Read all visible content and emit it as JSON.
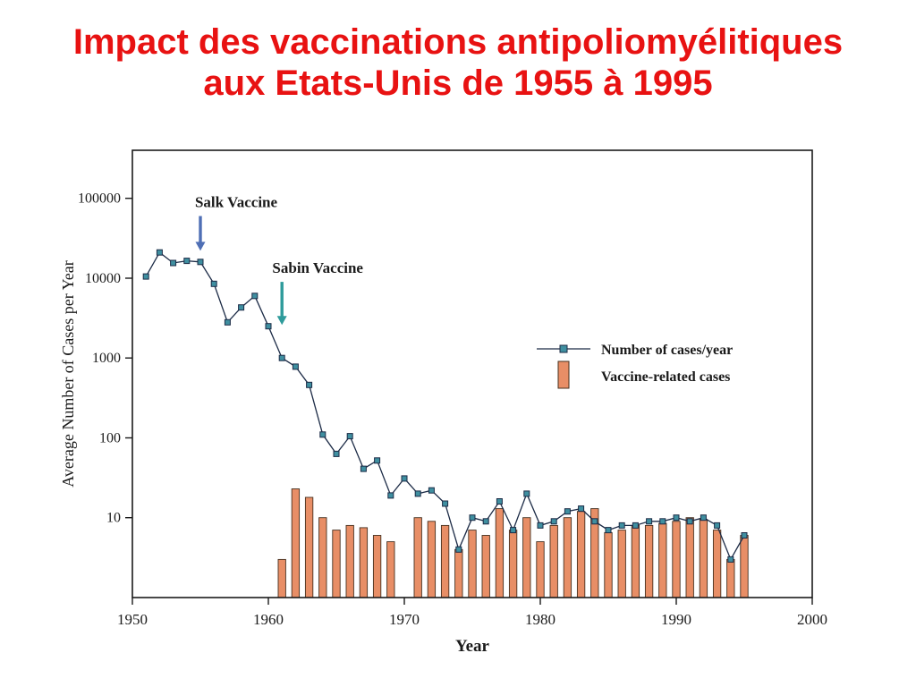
{
  "title": {
    "line1": "Impact des vaccinations antipoliomyélitiques",
    "line2": "aux Etats-Unis de 1955 à 1995"
  },
  "colors": {
    "title": "#e81212",
    "line": "#1c2b46",
    "marker": "#3f8fa0",
    "bar_fill": "#e88e66",
    "bar_stroke": "#46301f",
    "axis": "#1a1a1a",
    "salk_arrow": "#4f6fb5",
    "sabin_arrow": "#2e9b9b"
  },
  "chart_data": {
    "type": "line+bar",
    "title": "",
    "xlabel": "Year",
    "ylabel": "Average Number of Cases per Year",
    "x_ticks": [
      1950,
      1960,
      1970,
      1980,
      1990,
      2000
    ],
    "y_ticks": [
      10,
      100,
      1000,
      10000,
      100000
    ],
    "y_scale": "log",
    "xlim": [
      1950,
      2000
    ],
    "ylim": [
      1,
      400000
    ],
    "grid": false,
    "legend_position": "center-right",
    "legend": [
      {
        "label": "Number of cases/year",
        "type": "line"
      },
      {
        "label": "Vaccine-related cases",
        "type": "bar"
      }
    ],
    "annotations": [
      {
        "label": "Salk Vaccine",
        "year": 1955,
        "from_value": 60000,
        "to_value": 22000,
        "color": "#4f6fb5"
      },
      {
        "label": "Sabin Vaccine",
        "year": 1961,
        "from_value": 9000,
        "to_value": 2600,
        "color": "#2e9b9b"
      }
    ],
    "series": [
      {
        "name": "Number of cases/year",
        "type": "line",
        "x": [
          1951,
          1952,
          1953,
          1954,
          1955,
          1956,
          1957,
          1958,
          1959,
          1960,
          1961,
          1962,
          1963,
          1964,
          1965,
          1966,
          1967,
          1968,
          1969,
          1970,
          1971,
          1972,
          1973,
          1974,
          1975,
          1976,
          1977,
          1978,
          1979,
          1980,
          1981,
          1982,
          1983,
          1984,
          1985,
          1986,
          1987,
          1988,
          1989,
          1990,
          1991,
          1992,
          1993,
          1994,
          1995
        ],
        "values": [
          10500,
          21000,
          15500,
          16500,
          16000,
          8500,
          2800,
          4300,
          6000,
          2500,
          1000,
          780,
          460,
          110,
          63,
          105,
          41,
          52,
          19,
          31,
          20,
          22,
          15,
          4,
          10,
          9,
          16,
          7,
          20,
          8,
          9,
          12,
          13,
          9,
          7,
          8,
          8,
          9,
          9,
          10,
          9,
          10,
          8,
          3,
          6
        ]
      },
      {
        "name": "Vaccine-related cases",
        "type": "bar",
        "x": [
          1961,
          1962,
          1963,
          1964,
          1965,
          1966,
          1967,
          1968,
          1969,
          1971,
          1972,
          1973,
          1974,
          1975,
          1976,
          1977,
          1978,
          1979,
          1980,
          1981,
          1982,
          1983,
          1984,
          1985,
          1986,
          1987,
          1988,
          1989,
          1990,
          1991,
          1992,
          1993,
          1994,
          1995
        ],
        "values": [
          3,
          23,
          18,
          10,
          7,
          8,
          7.5,
          6,
          5,
          10,
          9,
          8,
          4,
          7,
          6,
          13,
          7,
          10,
          5,
          8,
          10,
          12,
          13,
          6.5,
          7,
          8,
          8,
          8.5,
          9,
          10,
          9.5,
          7,
          3,
          6
        ]
      }
    ]
  }
}
